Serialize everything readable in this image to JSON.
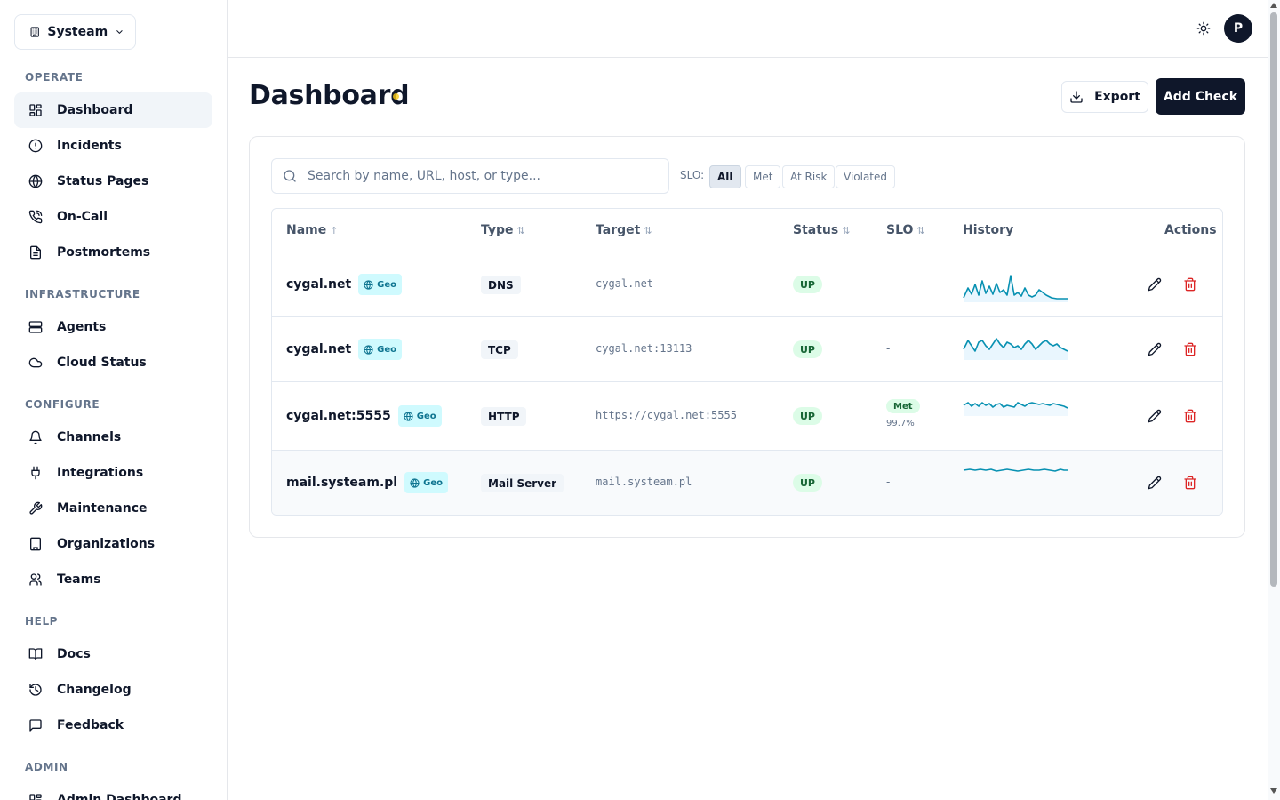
{
  "org": {
    "name": "Systeam"
  },
  "sidebar": {
    "sections": [
      {
        "title": "OPERATE",
        "items": [
          {
            "label": "Dashboard",
            "icon": "dashboard-icon",
            "active": true
          },
          {
            "label": "Incidents",
            "icon": "alert-circle-icon"
          },
          {
            "label": "Status Pages",
            "icon": "globe-icon"
          },
          {
            "label": "On-Call",
            "icon": "phone-call-icon"
          },
          {
            "label": "Postmortems",
            "icon": "document-icon"
          }
        ]
      },
      {
        "title": "INFRASTRUCTURE",
        "items": [
          {
            "label": "Agents",
            "icon": "server-icon"
          },
          {
            "label": "Cloud Status",
            "icon": "cloud-icon"
          }
        ]
      },
      {
        "title": "CONFIGURE",
        "items": [
          {
            "label": "Channels",
            "icon": "bell-icon"
          },
          {
            "label": "Integrations",
            "icon": "plug-icon"
          },
          {
            "label": "Maintenance",
            "icon": "wrench-icon"
          },
          {
            "label": "Organizations",
            "icon": "building-icon"
          },
          {
            "label": "Teams",
            "icon": "users-icon"
          }
        ]
      },
      {
        "title": "HELP",
        "items": [
          {
            "label": "Docs",
            "icon": "book-icon"
          },
          {
            "label": "Changelog",
            "icon": "history-icon"
          },
          {
            "label": "Feedback",
            "icon": "message-icon"
          }
        ]
      },
      {
        "title": "ADMIN",
        "items": [
          {
            "label": "Admin Dashboard",
            "icon": "dashboard-icon"
          }
        ]
      }
    ]
  },
  "topbar": {
    "avatar_initial": "P"
  },
  "page": {
    "title": "Dashboard",
    "export_label": "Export",
    "add_check_label": "Add Check"
  },
  "filters": {
    "search_placeholder": "Search by name, URL, host, or type...",
    "slo_label": "SLO:",
    "slo_options": [
      "All",
      "Met",
      "At Risk",
      "Violated"
    ],
    "slo_selected": "All"
  },
  "table": {
    "columns": [
      {
        "label": "Name",
        "sort": "↑"
      },
      {
        "label": "Type",
        "sort": "⇅"
      },
      {
        "label": "Target",
        "sort": "⇅"
      },
      {
        "label": "Status",
        "sort": "⇅"
      },
      {
        "label": "SLO",
        "sort": "⇅"
      },
      {
        "label": "History",
        "sort": ""
      },
      {
        "label": "Actions",
        "sort": ""
      }
    ],
    "rows": [
      {
        "name": "cygal.net",
        "geo": "Geo",
        "type": "DNS",
        "target": "cygal.net",
        "status": "UP",
        "slo": "-",
        "slo_pct": ""
      },
      {
        "name": "cygal.net",
        "geo": "Geo",
        "type": "TCP",
        "target": "cygal.net:13113",
        "status": "UP",
        "slo": "-",
        "slo_pct": ""
      },
      {
        "name": "cygal.net:5555",
        "geo": "Geo",
        "type": "HTTP",
        "target": "https://cygal.net:5555",
        "status": "UP",
        "slo": "Met",
        "slo_pct": "99.7%"
      },
      {
        "name": "mail.systeam.pl",
        "geo": "Geo",
        "type": "Mail Server",
        "target": "mail.systeam.pl",
        "status": "UP",
        "slo": "-",
        "slo_pct": ""
      }
    ]
  },
  "colors": {
    "accent": "#0f172a",
    "sparkline": "#0891b2",
    "status_up_bg": "#dcfce7",
    "status_up_text": "#166534",
    "geo_bg": "#cffafe",
    "delete": "#dc2626"
  }
}
